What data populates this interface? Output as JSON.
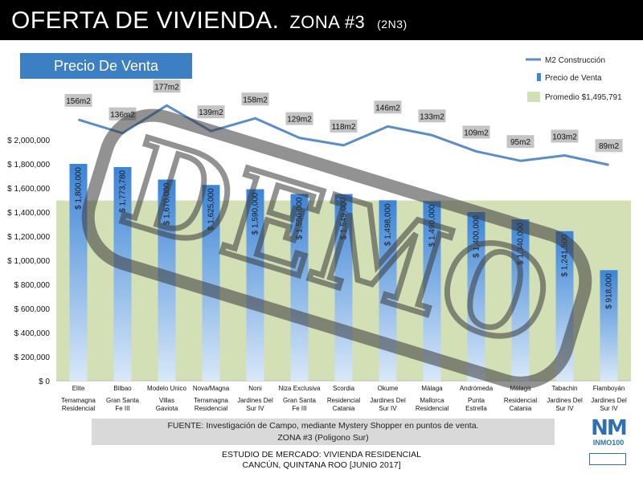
{
  "header": {
    "title_main": "OFERTA DE VIVIENDA.",
    "title_zone": "ZONA #3",
    "title_code": "(2N3)"
  },
  "chart_title": "Precio De Venta",
  "legend": {
    "line": "M2 Construcción",
    "bar": "Precio de Venta",
    "band": "Promedio $1,495,791"
  },
  "colors": {
    "line": "#5b8ec6",
    "bar_top": "#3c84d6",
    "bar_bottom": "#d8e8f8",
    "band": "#d3e0b5",
    "label_bg": "#c4c4c4"
  },
  "watermark": "DEMO",
  "chart_data": {
    "type": "bar",
    "categories": [
      "Elite",
      "Bilbao",
      "Modelo Unico",
      "Nova/Magna",
      "Noni",
      "Niza Exclusiva",
      "Scordia",
      "Okume",
      "Málaga",
      "Andrómeda",
      "Málaga",
      "Tabachin",
      "Flamboyán"
    ],
    "subcategories": [
      "Terramagna Residencial",
      "Gran Santa Fe III",
      "Villas Gaviota",
      "Terramagna Residencial",
      "Jardines Del Sur IV",
      "Gran Santa Fe III",
      "Residencial Catania",
      "Jardines Del Sur IV",
      "Mallorca Residencial",
      "Punta Estrella",
      "Residencial Catania",
      "Jardines Del Sur IV",
      "Jardines Del Sur IV"
    ],
    "series": [
      {
        "name": "Precio de Venta",
        "type": "bar",
        "values": [
          1800000,
          1773780,
          1670000,
          1625000,
          1590000,
          1550000,
          1549000,
          1498000,
          1490000,
          1400000,
          1340000,
          1241500,
          918000
        ],
        "labels": [
          "$ 1,800,000",
          "$ 1,773,780",
          "$ 1,670,000",
          "$ 1,625,000",
          "$ 1,590,000",
          "$ 1,550,000",
          "$ 1,549,000",
          "$ 1,498,000",
          "$ 1,490,000",
          "$ 1,400,000",
          "$ 1,340,000",
          "$ 1,241,500",
          "$ 918,000"
        ]
      },
      {
        "name": "M2 Construcción",
        "type": "line",
        "values": [
          156,
          136,
          177,
          139,
          158,
          129,
          118,
          146,
          133,
          109,
          95,
          103,
          89
        ],
        "labels": [
          "156m2",
          "136m2",
          "177m2",
          "139m2",
          "158m2",
          "129m2",
          "118m2",
          "146m2",
          "133m2",
          "109m2",
          "95m2",
          "103m2",
          "89m2"
        ]
      }
    ],
    "average": {
      "name": "Promedio $1,495,791",
      "value": 1495791
    },
    "yticks": [
      "$ 0",
      "$ 200,000",
      "$ 400,000",
      "$ 600,000",
      "$ 800,000",
      "$ 1,000,000",
      "$ 1,200,000",
      "$ 1,400,000",
      "$ 1,600,000",
      "$ 1,800,000",
      "$ 2,000,000"
    ],
    "ylim": [
      0,
      2000000
    ],
    "legend_position": "top-right"
  },
  "footer": {
    "fuente_line1": "FUENTE: Investigación de Campo, mediante Mystery Shopper en puntos de venta.",
    "fuente_line2": "ZONA #3 (Poligono Sur)",
    "estudio_line1": "ESTUDIO DE MERCADO: VIVIENDA RESIDENCIAL",
    "estudio_line2": "CANCÚN, QUINTANA ROO [JUNIO 2017]"
  },
  "logo": {
    "mark": "NM",
    "brand": "INMO100"
  }
}
